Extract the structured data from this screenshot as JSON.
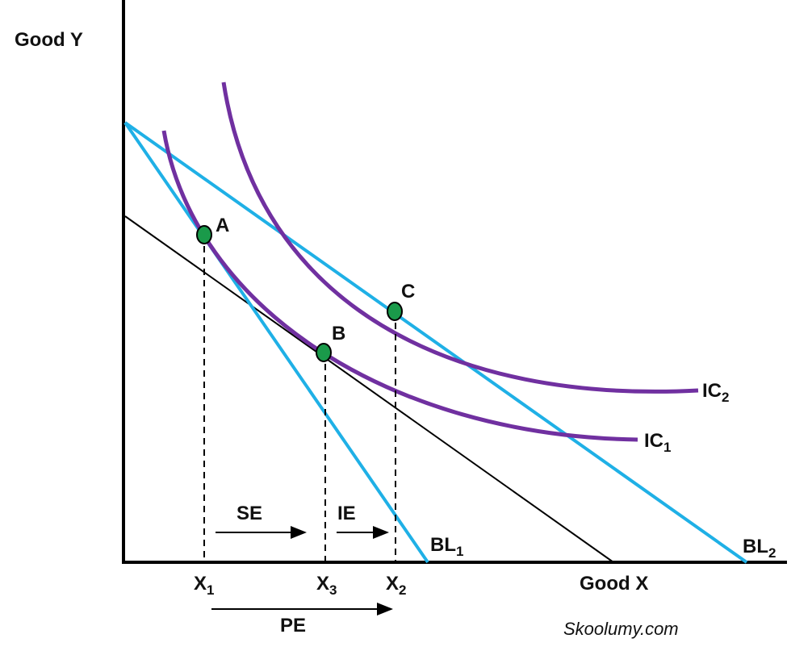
{
  "axes": {
    "y_label": "Good Y",
    "x_label": "Good X"
  },
  "points": [
    {
      "label": "A"
    },
    {
      "label": "B"
    },
    {
      "label": "C"
    }
  ],
  "curves": [
    {
      "label": "IC",
      "sub": "1"
    },
    {
      "label": "IC",
      "sub": "2"
    }
  ],
  "budget_lines": [
    {
      "label": "BL",
      "sub": "1"
    },
    {
      "label": "BL",
      "sub": "2"
    }
  ],
  "x_marks": [
    {
      "label": "X",
      "sub": "1"
    },
    {
      "label": "X",
      "sub": "3"
    },
    {
      "label": "X",
      "sub": "2"
    }
  ],
  "effects": {
    "substitution": "SE",
    "income": "IE",
    "price": "PE"
  },
  "watermark": "Skoolumy.com"
}
